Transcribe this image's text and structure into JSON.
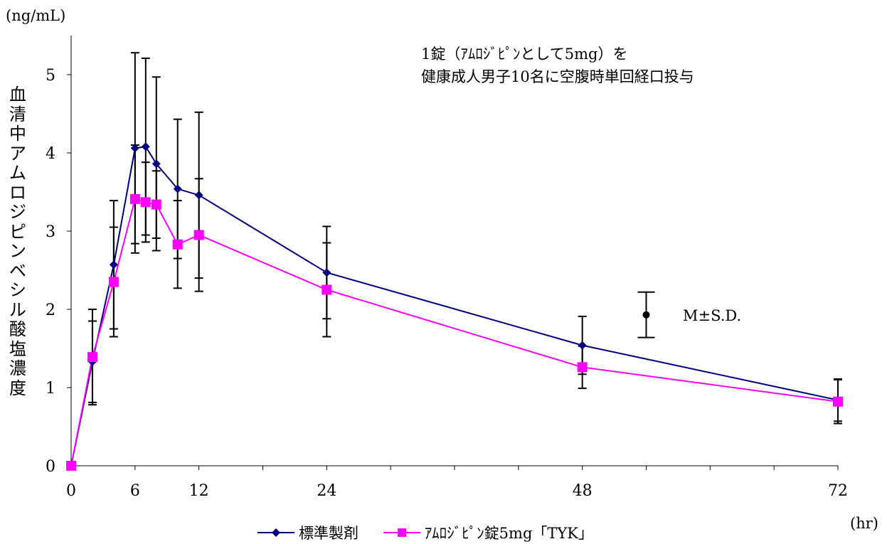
{
  "chart_data": {
    "type": "line",
    "y_unit_label": "(ng/mL)",
    "x_unit_label": "(hr)",
    "ylabel": "血清中アムロジピンベシル酸塩濃度",
    "annotation_lines": [
      "1錠（ｱﾑﾛｼﾞﾋﾟﾝとして5mg）を",
      "健康成人男子10名に空腹時単回経口投与"
    ],
    "error_key_label": "M±S.D.",
    "error_key_example": {
      "x": 54,
      "y": 1.93,
      "sd": 0.29
    },
    "xlim": [
      0,
      72
    ],
    "ylim": [
      0,
      5.5
    ],
    "x_ticks": [
      0,
      6,
      12,
      24,
      48,
      72
    ],
    "x_minor_ticks": [
      0,
      6,
      12,
      18,
      24,
      30,
      36,
      42,
      48,
      54,
      60,
      66,
      72
    ],
    "y_ticks": [
      0,
      1,
      2,
      3,
      4,
      5
    ],
    "series": [
      {
        "name": "標準製剤",
        "color": "#000080",
        "marker": "diamond",
        "x": [
          0,
          2,
          4,
          6,
          7,
          8,
          10,
          12,
          24,
          48,
          72
        ],
        "y": [
          0,
          1.33,
          2.57,
          4.06,
          4.08,
          3.86,
          3.54,
          3.46,
          2.47,
          1.54,
          0.84
        ],
        "sd": [
          0,
          0.52,
          0.82,
          1.22,
          1.13,
          1.11,
          0.89,
          1.06,
          0.59,
          0.37,
          0.27
        ]
      },
      {
        "name": "ｱﾑﾛｼﾞﾋﾟﾝ錠5mg「TYK」",
        "color": "#ff00ff",
        "marker": "square",
        "x": [
          0,
          2,
          4,
          6,
          7,
          8,
          10,
          12,
          24,
          48,
          72
        ],
        "y": [
          0,
          1.39,
          2.35,
          3.41,
          3.37,
          3.34,
          2.83,
          2.95,
          2.25,
          1.26,
          0.82
        ],
        "sd": [
          0,
          0.61,
          0.7,
          0.69,
          0.51,
          0.43,
          0.56,
          0.72,
          0.6,
          0.27,
          0.28
        ]
      }
    ]
  }
}
